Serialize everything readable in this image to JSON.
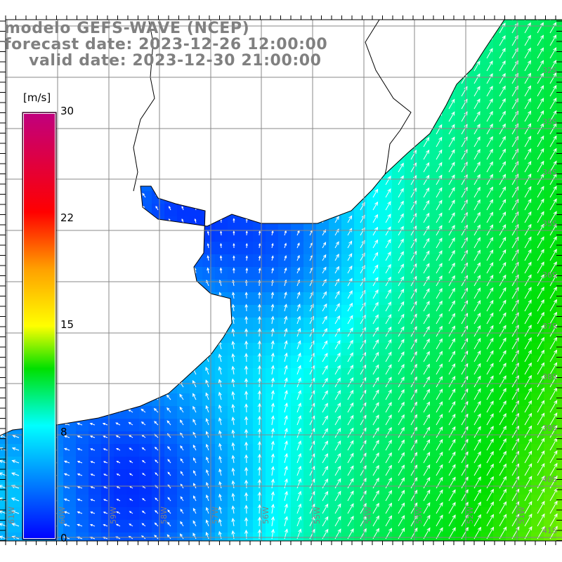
{
  "header": {
    "model": "modelo GEFS-WAVE (NCEP)",
    "forecast": "forecast date: 2023-12-26 12:00:00",
    "valid": "valid date: 2023-12-30 21:00:00"
  },
  "colorbar": {
    "unit": "[m/s]",
    "ticks": [
      {
        "value": 30,
        "label": "30"
      },
      {
        "value": 22,
        "label": "22"
      },
      {
        "value": 15,
        "label": "15"
      },
      {
        "value": 8,
        "label": "8"
      },
      {
        "value": 0,
        "label": "0"
      }
    ],
    "stops": [
      {
        "value": 0,
        "color": "#0000ff"
      },
      {
        "value": 8,
        "color": "#00ffff"
      },
      {
        "value": 12,
        "color": "#00e000"
      },
      {
        "value": 15,
        "color": "#ffff00"
      },
      {
        "value": 19,
        "color": "#ffa000"
      },
      {
        "value": 23,
        "color": "#ff0000"
      },
      {
        "value": 30,
        "color": "#c0007f"
      }
    ]
  },
  "axes": {
    "lon_labels": [
      "61W",
      "60W",
      "59W",
      "58W",
      "57W",
      "56W",
      "55W",
      "54W",
      "53W",
      "52W",
      "51W"
    ],
    "lat_labels": [
      "32S",
      "33S",
      "34S",
      "35S",
      "36S",
      "37S",
      "38S",
      "39S",
      "40S",
      "41S"
    ],
    "grid_color": "#888888",
    "label_color": "#808080"
  }
}
